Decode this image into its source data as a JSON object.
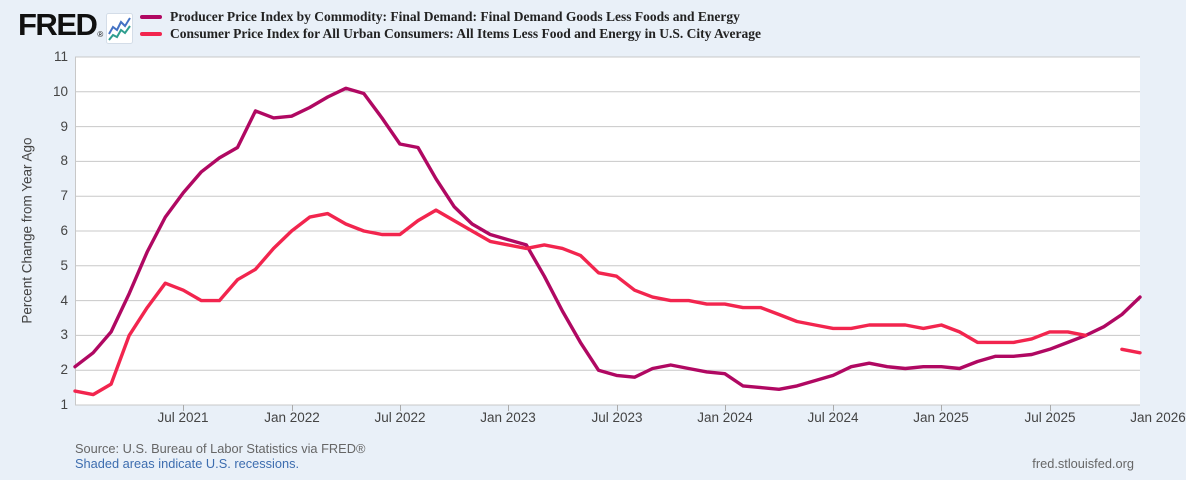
{
  "brand": {
    "logo_text": "FRED",
    "registered_mark": "®",
    "icon": "fred-sparkline-icon",
    "icon_colors": {
      "line1": "#4472c4",
      "line2": "#2e9e8f"
    }
  },
  "legend": [
    {
      "label": "Producer Price Index by Commodity: Final Demand: Final Demand Goods Less Foods and Energy",
      "color": "#b00862"
    },
    {
      "label": "Consumer Price Index for All Urban Consumers: All Items Less Food and Energy in U.S. City Average",
      "color": "#f2254e"
    }
  ],
  "chart_data": {
    "type": "line",
    "title": "",
    "ylabel": "Percent Change from Year Ago",
    "xlabel": "",
    "ylim": [
      1,
      11
    ],
    "yticks": [
      1,
      2,
      3,
      4,
      5,
      6,
      7,
      8,
      9,
      10,
      11
    ],
    "grid": true,
    "grid_color": "#c8c8c8",
    "legend_position": "top-left-header",
    "months": [
      "2021-01",
      "2021-02",
      "2021-03",
      "2021-04",
      "2021-05",
      "2021-06",
      "2021-07",
      "2021-08",
      "2021-09",
      "2021-10",
      "2021-11",
      "2021-12",
      "2022-01",
      "2022-02",
      "2022-03",
      "2022-04",
      "2022-05",
      "2022-06",
      "2022-07",
      "2022-08",
      "2022-09",
      "2022-10",
      "2022-11",
      "2022-12",
      "2023-01",
      "2023-02",
      "2023-03",
      "2023-04",
      "2023-05",
      "2023-06",
      "2023-07",
      "2023-08",
      "2023-09",
      "2023-10",
      "2023-11",
      "2023-12",
      "2024-01",
      "2024-02",
      "2024-03",
      "2024-04",
      "2024-05",
      "2024-06",
      "2024-07",
      "2024-08",
      "2024-09",
      "2024-10",
      "2024-11",
      "2024-12",
      "2025-01",
      "2025-02",
      "2025-03",
      "2025-04",
      "2025-05",
      "2025-06",
      "2025-07",
      "2025-08",
      "2025-09",
      "2025-10",
      "2025-11",
      "2025-12"
    ],
    "xticks": [
      {
        "month_index": 6,
        "label": "Jul 2021"
      },
      {
        "month_index": 12,
        "label": "Jan 2022"
      },
      {
        "month_index": 18,
        "label": "Jul 2022"
      },
      {
        "month_index": 24,
        "label": "Jan 2023"
      },
      {
        "month_index": 30,
        "label": "Jul 2023"
      },
      {
        "month_index": 36,
        "label": "Jan 2024"
      },
      {
        "month_index": 42,
        "label": "Jul 2024"
      },
      {
        "month_index": 48,
        "label": "Jan 2025"
      },
      {
        "month_index": 54,
        "label": "Jul 2025"
      },
      {
        "month_index": 60,
        "label": "Jan 2026"
      }
    ],
    "series": [
      {
        "name": "Producer Price Index by Commodity: Final Demand: Final Demand Goods Less Foods and Energy",
        "color": "#b00862",
        "values": [
          2.1,
          2.5,
          3.1,
          4.2,
          5.4,
          6.4,
          7.1,
          7.7,
          8.1,
          8.4,
          9.45,
          9.25,
          9.3,
          9.55,
          9.85,
          10.1,
          9.95,
          9.25,
          8.5,
          8.4,
          7.5,
          6.7,
          6.2,
          5.9,
          5.75,
          5.6,
          4.7,
          3.7,
          2.8,
          2.0,
          1.85,
          1.8,
          2.05,
          2.15,
          2.05,
          1.95,
          1.9,
          1.55,
          1.5,
          1.45,
          1.55,
          1.7,
          1.85,
          2.1,
          2.2,
          2.1,
          2.05,
          2.1,
          2.1,
          2.05,
          2.25,
          2.4,
          2.4,
          2.45,
          2.6,
          2.8,
          3.0,
          3.25,
          3.6,
          4.1
        ]
      },
      {
        "name": "Consumer Price Index for All Urban Consumers: All Items Less Food and Energy in U.S. City Average",
        "color": "#f2254e",
        "values": [
          1.4,
          1.3,
          1.6,
          3.0,
          3.8,
          4.5,
          4.3,
          4.0,
          4.0,
          4.6,
          4.9,
          5.5,
          6.0,
          6.4,
          6.5,
          6.2,
          6.0,
          5.9,
          5.9,
          6.3,
          6.6,
          6.3,
          6.0,
          5.7,
          5.6,
          5.5,
          5.6,
          5.5,
          5.3,
          4.8,
          4.7,
          4.3,
          4.1,
          4.0,
          4.0,
          3.9,
          3.9,
          3.8,
          3.8,
          3.6,
          3.4,
          3.3,
          3.2,
          3.2,
          3.3,
          3.3,
          3.3,
          3.2,
          3.3,
          3.1,
          2.8,
          2.8,
          2.8,
          2.9,
          3.1,
          3.1,
          3.0,
          null,
          2.6,
          2.5
        ]
      }
    ],
    "note": "CPI series has a one-month data gap near the end (null value)"
  },
  "footer": {
    "source_line": "Source: U.S. Bureau of Labor Statistics via FRED®",
    "recession_note": "Shaded areas indicate U.S. recessions.",
    "site_url": "fred.stlouisfed.org"
  }
}
